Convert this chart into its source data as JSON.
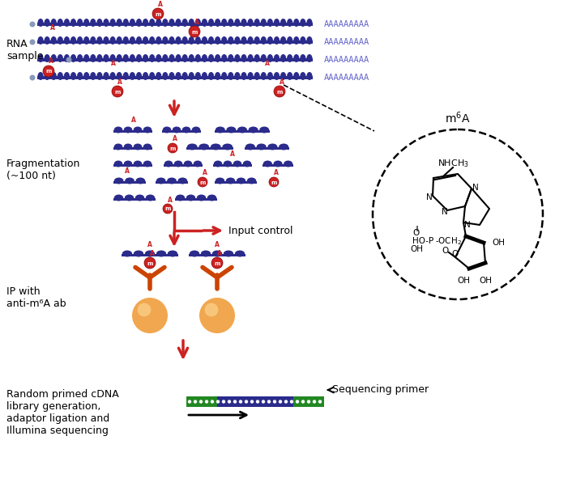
{
  "bg_color": "#ffffff",
  "rna_color": "#2b2b8c",
  "polyA_color": "#6666cc",
  "m6a_color": "#cc2222",
  "arrow_color": "#cc2222",
  "bead_color": "#f0a040",
  "seq_green": "#228822",
  "seq_blue": "#2b2b8c",
  "step1_label": "RNA\nsample",
  "step2_label": "Fragmentation\n(~100 nt)",
  "step3_label": "IP with\nanti-m⁶A ab",
  "step4_label": "Random primed cDNA\nlibrary generation,\nadaptor ligation and\nIllumina sequencing",
  "input_label": "Input control",
  "seq_primer_label": "Sequencing primer",
  "figsize": [
    7.06,
    6.02
  ],
  "dpi": 100
}
